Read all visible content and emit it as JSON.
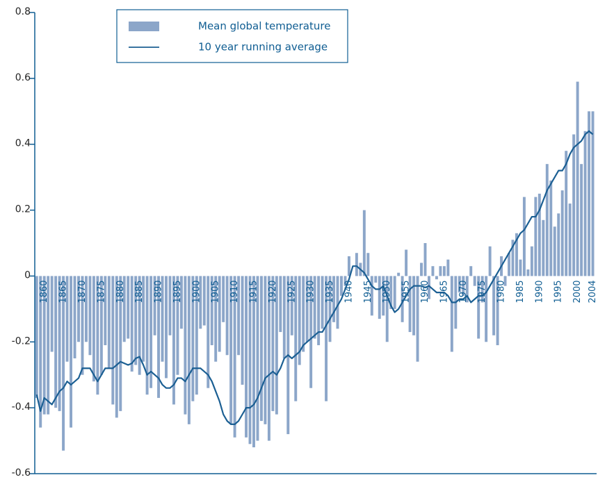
{
  "chart_data": {
    "type": "bar",
    "x": [
      1858,
      1859,
      1860,
      1861,
      1862,
      1863,
      1864,
      1865,
      1866,
      1867,
      1868,
      1869,
      1870,
      1871,
      1872,
      1873,
      1874,
      1875,
      1876,
      1877,
      1878,
      1879,
      1880,
      1881,
      1882,
      1883,
      1884,
      1885,
      1886,
      1887,
      1888,
      1889,
      1890,
      1891,
      1892,
      1893,
      1894,
      1895,
      1896,
      1897,
      1898,
      1899,
      1900,
      1901,
      1902,
      1903,
      1904,
      1905,
      1906,
      1907,
      1908,
      1909,
      1910,
      1911,
      1912,
      1913,
      1914,
      1915,
      1916,
      1917,
      1918,
      1919,
      1920,
      1921,
      1922,
      1923,
      1924,
      1925,
      1926,
      1927,
      1928,
      1929,
      1930,
      1931,
      1932,
      1933,
      1934,
      1935,
      1936,
      1937,
      1938,
      1939,
      1940,
      1941,
      1942,
      1943,
      1944,
      1945,
      1946,
      1947,
      1948,
      1949,
      1950,
      1951,
      1952,
      1953,
      1954,
      1955,
      1956,
      1957,
      1958,
      1959,
      1960,
      1961,
      1962,
      1963,
      1964,
      1965,
      1966,
      1967,
      1968,
      1969,
      1970,
      1971,
      1972,
      1973,
      1974,
      1975,
      1976,
      1977,
      1978,
      1979,
      1980,
      1981,
      1982,
      1983,
      1984,
      1985,
      1986,
      1987,
      1988,
      1989,
      1990,
      1991,
      1992,
      1993,
      1994,
      1995,
      1996,
      1997,
      1998,
      1999,
      2000,
      2001,
      2002,
      2003,
      2004
    ],
    "series": [
      {
        "name": "Mean global temperature",
        "type": "bar",
        "color": "#8ca6c9",
        "values": [
          -0.37,
          -0.46,
          -0.42,
          -0.42,
          -0.23,
          -0.4,
          -0.41,
          -0.53,
          -0.26,
          -0.46,
          -0.25,
          -0.2,
          -0.3,
          -0.2,
          -0.24,
          -0.32,
          -0.36,
          -0.3,
          -0.21,
          -0.28,
          -0.39,
          -0.43,
          -0.41,
          -0.2,
          -0.19,
          -0.29,
          -0.27,
          -0.3,
          -0.26,
          -0.36,
          -0.34,
          -0.18,
          -0.37,
          -0.26,
          -0.31,
          -0.18,
          -0.39,
          -0.3,
          -0.16,
          -0.42,
          -0.45,
          -0.38,
          -0.36,
          -0.16,
          -0.15,
          -0.34,
          -0.21,
          -0.26,
          -0.23,
          -0.14,
          -0.24,
          -0.45,
          -0.49,
          -0.24,
          -0.33,
          -0.49,
          -0.51,
          -0.52,
          -0.5,
          -0.44,
          -0.45,
          -0.5,
          -0.41,
          -0.42,
          -0.17,
          -0.25,
          -0.48,
          -0.18,
          -0.38,
          -0.27,
          -0.23,
          -0.2,
          -0.34,
          -0.19,
          -0.21,
          -0.16,
          -0.38,
          -0.2,
          -0.14,
          -0.16,
          -0.06,
          -0.03,
          0.06,
          0.0,
          0.07,
          0.04,
          0.2,
          0.07,
          -0.12,
          -0.02,
          -0.13,
          -0.12,
          -0.2,
          -0.1,
          -0.1,
          0.01,
          -0.14,
          0.08,
          -0.17,
          -0.18,
          -0.26,
          0.04,
          0.1,
          -0.07,
          0.03,
          -0.01,
          0.03,
          0.03,
          0.05,
          -0.23,
          -0.16,
          -0.05,
          -0.06,
          -0.08,
          0.03,
          -0.03,
          -0.19,
          -0.08,
          -0.2,
          0.09,
          -0.18,
          -0.21,
          0.06,
          -0.03,
          0.07,
          0.11,
          0.13,
          0.05,
          0.24,
          0.02,
          0.09,
          0.24,
          0.25,
          0.17,
          0.34,
          0.29,
          0.15,
          0.19,
          0.26,
          0.38,
          0.22,
          0.43,
          0.59,
          0.34,
          0.44,
          0.5,
          0.5
        ]
      },
      {
        "name": "10 year running average",
        "type": "line",
        "color": "#1b5f93",
        "values": [
          -0.36,
          -0.41,
          -0.37,
          -0.38,
          -0.39,
          -0.37,
          -0.35,
          -0.34,
          -0.32,
          -0.33,
          -0.32,
          -0.31,
          -0.28,
          -0.28,
          -0.28,
          -0.3,
          -0.32,
          -0.3,
          -0.28,
          -0.28,
          -0.28,
          -0.27,
          -0.26,
          -0.265,
          -0.27,
          -0.265,
          -0.25,
          -0.245,
          -0.27,
          -0.3,
          -0.29,
          -0.3,
          -0.31,
          -0.33,
          -0.34,
          -0.34,
          -0.33,
          -0.31,
          -0.31,
          -0.32,
          -0.3,
          -0.28,
          -0.28,
          -0.28,
          -0.29,
          -0.3,
          -0.32,
          -0.35,
          -0.38,
          -0.42,
          -0.44,
          -0.45,
          -0.45,
          -0.44,
          -0.42,
          -0.4,
          -0.4,
          -0.39,
          -0.37,
          -0.34,
          -0.31,
          -0.3,
          -0.29,
          -0.3,
          -0.28,
          -0.25,
          -0.24,
          -0.25,
          -0.24,
          -0.23,
          -0.21,
          -0.2,
          -0.19,
          -0.18,
          -0.17,
          -0.17,
          -0.15,
          -0.13,
          -0.11,
          -0.09,
          -0.07,
          -0.04,
          -0.01,
          0.03,
          0.03,
          0.02,
          0.01,
          -0.01,
          -0.03,
          -0.04,
          -0.04,
          -0.03,
          -0.06,
          -0.09,
          -0.11,
          -0.1,
          -0.08,
          -0.06,
          -0.04,
          -0.03,
          -0.03,
          -0.03,
          -0.035,
          -0.03,
          -0.04,
          -0.05,
          -0.05,
          -0.05,
          -0.06,
          -0.08,
          -0.08,
          -0.07,
          -0.07,
          -0.06,
          -0.08,
          -0.07,
          -0.06,
          -0.06,
          -0.05,
          -0.03,
          -0.01,
          0.01,
          0.03,
          0.05,
          0.07,
          0.09,
          0.11,
          0.13,
          0.14,
          0.16,
          0.18,
          0.18,
          0.2,
          0.23,
          0.26,
          0.28,
          0.3,
          0.32,
          0.32,
          0.34,
          0.37,
          0.39,
          0.4,
          0.41,
          0.43,
          0.44,
          0.43
        ]
      }
    ],
    "xlim": [
      1857.5,
      2005
    ],
    "xticks": [
      1860,
      1865,
      1870,
      1875,
      1880,
      1885,
      1890,
      1895,
      1900,
      1905,
      1910,
      1915,
      1920,
      1925,
      1930,
      1935,
      1940,
      1945,
      1950,
      1955,
      1960,
      1965,
      1970,
      1975,
      1980,
      1985,
      1990,
      1995,
      2000,
      2004
    ],
    "ylim": [
      -0.6,
      0.8
    ],
    "yticks": [
      -0.6,
      -0.4,
      -0.2,
      0,
      0.2,
      0.4,
      0.6,
      0.8
    ]
  }
}
